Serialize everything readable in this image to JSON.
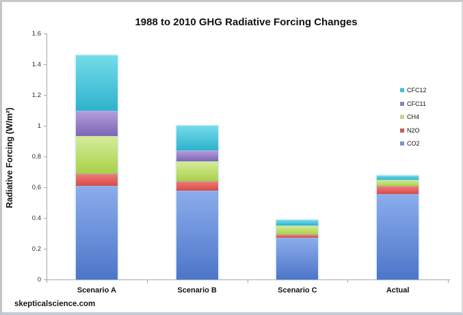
{
  "frame": {
    "watermark": "skepticalscience.com"
  },
  "chart_data": {
    "type": "bar",
    "stacked": true,
    "title": "1988 to 2010 GHG Radiative Forcing Changes",
    "xlabel": "",
    "ylabel": "Radiative Forcing (W/m²)",
    "ylim": [
      0,
      1.6
    ],
    "y_ticks": [
      "0",
      "0.2",
      "0.4",
      "0.6",
      "0.8",
      "1",
      "1.2",
      "1.4",
      "1.6"
    ],
    "grid": false,
    "legend_position": "right",
    "categories": [
      "Scenario A",
      "Scenario B",
      "Scenario C",
      "Actual"
    ],
    "series": [
      {
        "name": "CO2",
        "values": [
          0.61,
          0.58,
          0.27,
          0.555
        ],
        "legend_color": "#7796cb",
        "gradient_top": "#8cadec",
        "gradient_bottom": "#4d75c9"
      },
      {
        "name": "N2O",
        "values": [
          0.08,
          0.06,
          0.025,
          0.052
        ],
        "legend_color": "#c05f60",
        "gradient_top": "#ee7d76",
        "gradient_bottom": "#d84b4a"
      },
      {
        "name": "CH4",
        "values": [
          0.245,
          0.13,
          0.055,
          0.04
        ],
        "legend_color": "#c1d78f",
        "gradient_top": "#d6ec9b",
        "gradient_bottom": "#a9d149"
      },
      {
        "name": "CFC11",
        "values": [
          0.165,
          0.07,
          0.0,
          0.0
        ],
        "legend_color": "#9184b8",
        "gradient_top": "#b59edf",
        "gradient_bottom": "#7e66b3"
      },
      {
        "name": "CFC12",
        "values": [
          0.36,
          0.16,
          0.038,
          0.028
        ],
        "legend_color": "#49bfd2",
        "gradient_top": "#75dcea",
        "gradient_bottom": "#2eb2cd"
      }
    ],
    "legend_order_top_to_bottom": [
      "CFC12",
      "CFC11",
      "CH4",
      "N2O",
      "CO2"
    ],
    "totals": [
      1.46,
      1.0,
      0.388,
      0.675
    ]
  }
}
